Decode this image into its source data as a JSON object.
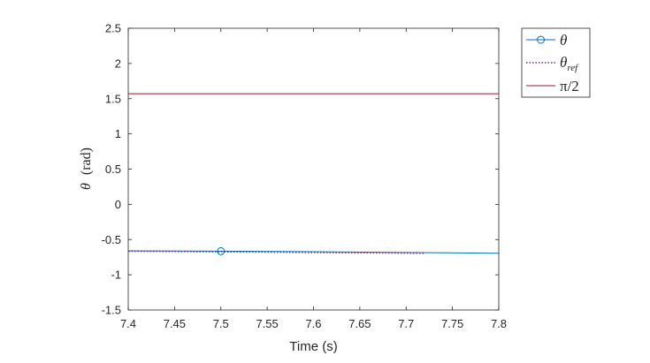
{
  "chart_data": {
    "type": "line",
    "title": "",
    "xlabel": "Time (s)",
    "ylabel": {
      "symbol": "θ",
      "unit": "(rad)"
    },
    "xlim": [
      7.4,
      7.8
    ],
    "ylim": [
      -1.5,
      2.5
    ],
    "xticks": [
      7.4,
      7.45,
      7.5,
      7.55,
      7.6,
      7.65,
      7.7,
      7.75,
      7.8
    ],
    "yticks": [
      -1.5,
      -1,
      -0.5,
      0,
      0.5,
      1,
      1.5,
      2,
      2.5
    ],
    "xtick_labels": [
      "7.4",
      "7.45",
      "7.5",
      "7.55",
      "7.6",
      "7.65",
      "7.7",
      "7.75",
      "7.8"
    ],
    "ytick_labels": [
      "-1.5",
      "-1",
      "-0.5",
      "0",
      "0.5",
      "1",
      "1.5",
      "2",
      "2.5"
    ],
    "grid": false,
    "legend_position": "outside-top-right",
    "series": [
      {
        "name": "θ",
        "color": "#0072BD",
        "style": "solid-with-circle-marker",
        "x": [
          7.4,
          7.5,
          7.6,
          7.7,
          7.8
        ],
        "y": [
          -0.66,
          -0.665,
          -0.673,
          -0.683,
          -0.695
        ],
        "markers_x": [
          7.5
        ]
      },
      {
        "name": "θ_ref",
        "name_base": "θ",
        "name_sub": "ref",
        "color": "#7E2F8E",
        "style": "dotted",
        "x": [
          7.4,
          7.72
        ],
        "y": [
          -0.665,
          -0.695
        ]
      },
      {
        "name": "π/2",
        "color": "#A2142F",
        "style": "solid",
        "x": [
          7.4,
          7.8
        ],
        "y": [
          1.5708,
          1.5708
        ]
      }
    ]
  }
}
